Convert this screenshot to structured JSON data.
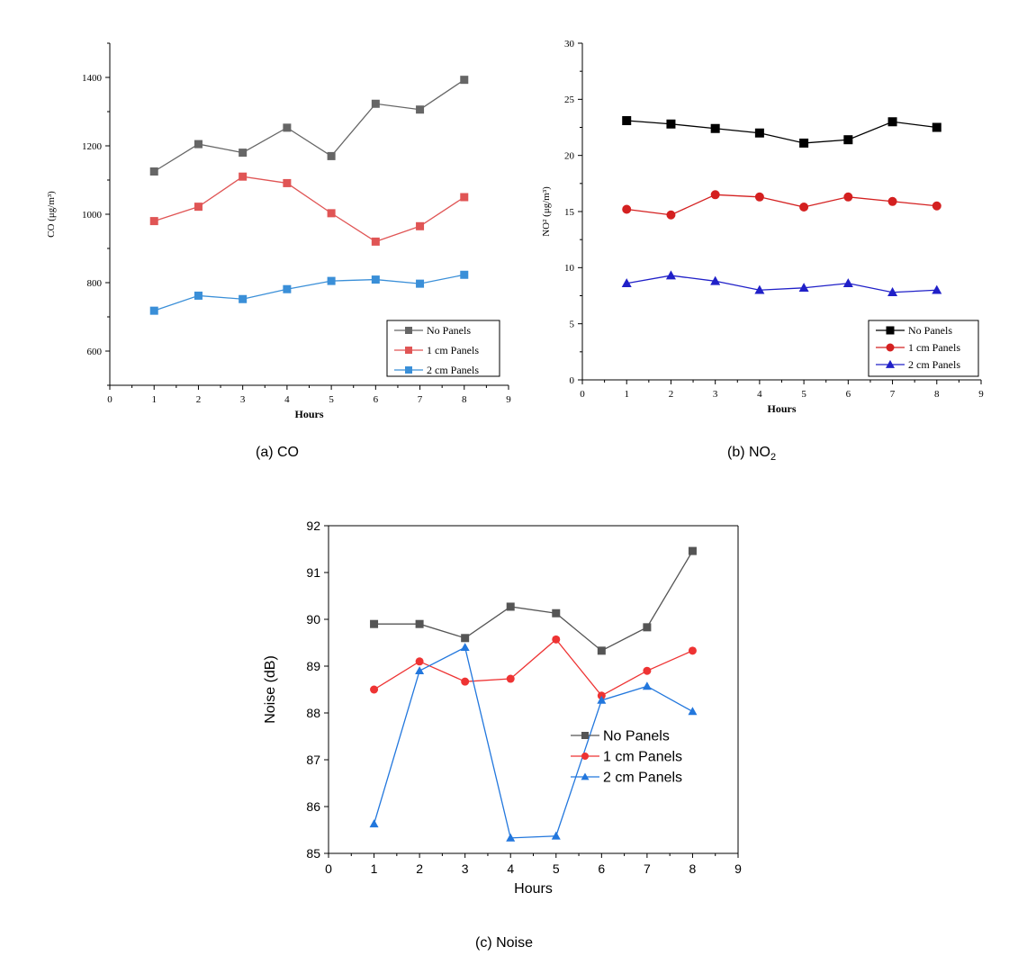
{
  "captions": {
    "co": "(a) CO",
    "no2_prefix": "(b)  NO",
    "no2_sub": "2",
    "noise": "(c) Noise"
  },
  "chart_data": [
    {
      "id": "co",
      "type": "line",
      "xlabel": "Hours",
      "ylabel": "CO (μg/m³)",
      "xlim": [
        0,
        9
      ],
      "ylim": [
        500,
        1500
      ],
      "xticks": [
        0,
        1,
        2,
        3,
        4,
        5,
        6,
        7,
        8,
        9
      ],
      "yticks": [
        600,
        800,
        1000,
        1200,
        1400
      ],
      "legend_position": "bottom-right",
      "grid": false,
      "series": [
        {
          "name": "No Panels",
          "color": "#666666",
          "marker": "square",
          "x": [
            1,
            2,
            3,
            4,
            5,
            6,
            7,
            8
          ],
          "values": [
            1125,
            1205,
            1180,
            1253,
            1170,
            1323,
            1306,
            1393
          ]
        },
        {
          "name": "1 cm Panels",
          "color": "#e05555",
          "marker": "square",
          "x": [
            1,
            2,
            3,
            4,
            5,
            6,
            7,
            8
          ],
          "values": [
            980,
            1022,
            1110,
            1091,
            1003,
            920,
            965,
            1050
          ]
        },
        {
          "name": "2 cm Panels",
          "color": "#3a8fd8",
          "marker": "square",
          "x": [
            1,
            2,
            3,
            4,
            5,
            6,
            7,
            8
          ],
          "values": [
            718,
            762,
            752,
            781,
            805,
            809,
            797,
            823
          ]
        }
      ]
    },
    {
      "id": "no2",
      "type": "line",
      "xlabel": "Hours",
      "ylabel": "NO² (μg/m³)",
      "xlim": [
        0,
        9
      ],
      "ylim": [
        0,
        30
      ],
      "xticks": [
        0,
        1,
        2,
        3,
        4,
        5,
        6,
        7,
        8,
        9
      ],
      "yticks": [
        0,
        5,
        10,
        15,
        20,
        25,
        30
      ],
      "legend_position": "bottom-right",
      "grid": false,
      "series": [
        {
          "name": "No Panels",
          "color": "#000000",
          "marker": "square",
          "x": [
            1,
            2,
            3,
            4,
            5,
            6,
            7,
            8
          ],
          "values": [
            23.1,
            22.8,
            22.4,
            22.0,
            21.1,
            21.4,
            23.0,
            22.5
          ]
        },
        {
          "name": "1 cm Panels",
          "color": "#d42020",
          "marker": "circle",
          "x": [
            1,
            2,
            3,
            4,
            5,
            6,
            7,
            8
          ],
          "values": [
            15.2,
            14.7,
            16.5,
            16.3,
            15.4,
            16.3,
            15.9,
            15.5
          ]
        },
        {
          "name": "2 cm Panels",
          "color": "#2020c8",
          "marker": "triangle",
          "x": [
            1,
            2,
            3,
            4,
            5,
            6,
            7,
            8
          ],
          "values": [
            8.6,
            9.3,
            8.8,
            8.0,
            8.2,
            8.6,
            7.8,
            8.0
          ]
        }
      ]
    },
    {
      "id": "noise",
      "type": "line",
      "xlabel": "Hours",
      "ylabel": "Noise (dB)",
      "xlim": [
        0,
        9
      ],
      "ylim": [
        85,
        92
      ],
      "xticks": [
        0,
        1,
        2,
        3,
        4,
        5,
        6,
        7,
        8,
        9
      ],
      "yticks": [
        85,
        86,
        87,
        88,
        89,
        90,
        91,
        92
      ],
      "legend_position": "bottom-right",
      "grid": false,
      "series": [
        {
          "name": "No Panels",
          "color": "#555555",
          "marker": "square",
          "x": [
            1,
            2,
            3,
            4,
            5,
            6,
            7,
            8
          ],
          "values": [
            89.9,
            89.9,
            89.6,
            90.27,
            90.13,
            89.33,
            89.83,
            91.46
          ]
        },
        {
          "name": "1 cm Panels",
          "color": "#ee3333",
          "marker": "circle",
          "x": [
            1,
            2,
            3,
            4,
            5,
            6,
            7,
            8
          ],
          "values": [
            88.5,
            89.1,
            88.67,
            88.73,
            89.57,
            88.37,
            88.9,
            89.33
          ]
        },
        {
          "name": "2 cm Panels",
          "color": "#2277dd",
          "marker": "triangle",
          "x": [
            1,
            2,
            3,
            4,
            5,
            6,
            7,
            8
          ],
          "values": [
            85.63,
            88.9,
            89.4,
            85.33,
            85.37,
            88.27,
            88.57,
            88.03
          ]
        }
      ]
    }
  ]
}
